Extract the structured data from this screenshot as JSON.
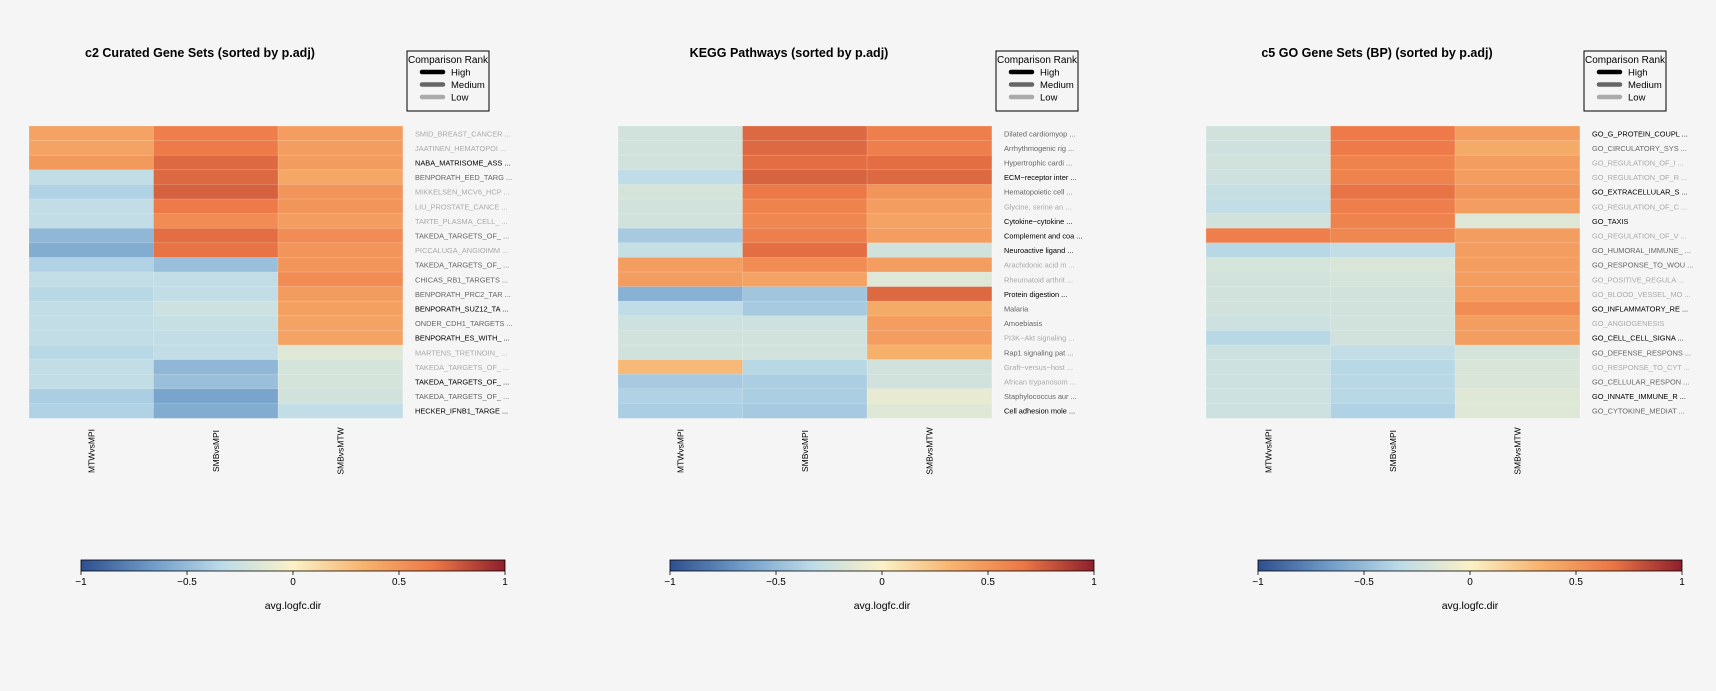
{
  "chart_data": [
    {
      "type": "heatmap",
      "title": "c2 Curated Gene Sets (sorted by p.adj)",
      "columns": [
        "MTWvsMPI",
        "SMBvsMPI",
        "SMBvsMTW"
      ],
      "rows": [
        {
          "label": "SMID_BREAST_CANCER ...",
          "rank": "low"
        },
        {
          "label": "JAATINEN_HEMATOPOI ...",
          "rank": "low"
        },
        {
          "label": "NABA_MATRISOME_ASS ...",
          "rank": "high"
        },
        {
          "label": "BENPORATH_EED_TARG ...",
          "rank": "medium"
        },
        {
          "label": "MIKKELSEN_MCV6_HCP ...",
          "rank": "low"
        },
        {
          "label": "LIU_PROSTATE_CANCE ...",
          "rank": "low"
        },
        {
          "label": "TARTE_PLASMA_CELL_ ...",
          "rank": "low"
        },
        {
          "label": "TAKEDA_TARGETS_OF_ ...",
          "rank": "medium"
        },
        {
          "label": "PICCALUGA_ANGIOIMM ...",
          "rank": "low"
        },
        {
          "label": "TAKEDA_TARGETS_OF_ ...",
          "rank": "medium"
        },
        {
          "label": "CHICAS_RB1_TARGETS ...",
          "rank": "medium"
        },
        {
          "label": "BENPORATH_PRC2_TAR ...",
          "rank": "medium"
        },
        {
          "label": "BENPORATH_SUZ12_TA ...",
          "rank": "high"
        },
        {
          "label": "ONDER_CDH1_TARGETS ...",
          "rank": "medium"
        },
        {
          "label": "BENPORATH_ES_WITH_ ...",
          "rank": "high"
        },
        {
          "label": "MARTENS_TRETINOIN_ ...",
          "rank": "low"
        },
        {
          "label": "TAKEDA_TARGETS_OF_ ...",
          "rank": "low"
        },
        {
          "label": "TAKEDA_TARGETS_OF_ ...",
          "rank": "high"
        },
        {
          "label": "TAKEDA_TARGETS_OF_ ...",
          "rank": "medium"
        },
        {
          "label": "HECKER_IFNB1_TARGE ...",
          "rank": "high"
        }
      ],
      "values": [
        [
          0.42,
          0.62,
          0.45
        ],
        [
          0.42,
          0.65,
          0.45
        ],
        [
          0.48,
          0.72,
          0.46
        ],
        [
          -0.3,
          0.72,
          0.4
        ],
        [
          -0.38,
          0.75,
          0.5
        ],
        [
          -0.3,
          0.65,
          0.5
        ],
        [
          -0.3,
          0.55,
          0.45
        ],
        [
          -0.52,
          0.7,
          0.55
        ],
        [
          -0.58,
          0.68,
          0.5
        ],
        [
          -0.38,
          -0.48,
          0.5
        ],
        [
          -0.3,
          -0.3,
          0.55
        ],
        [
          -0.35,
          -0.3,
          0.46
        ],
        [
          -0.3,
          -0.25,
          0.44
        ],
        [
          -0.3,
          -0.28,
          0.42
        ],
        [
          -0.3,
          -0.3,
          0.42
        ],
        [
          -0.35,
          -0.3,
          -0.15
        ],
        [
          -0.3,
          -0.52,
          -0.2
        ],
        [
          -0.3,
          -0.48,
          -0.2
        ],
        [
          -0.4,
          -0.62,
          -0.22
        ],
        [
          -0.38,
          -0.58,
          -0.3
        ]
      ],
      "legend": {
        "title": "Comparison Rank",
        "items": [
          "High",
          "Medium",
          "Low"
        ],
        "position": "top-right"
      },
      "colorbar": {
        "label": "avg.logfc.dir",
        "ticks": [
          "−1",
          "−0.5",
          "0",
          "0.5",
          "1"
        ],
        "range": [
          -1,
          1
        ]
      }
    },
    {
      "type": "heatmap",
      "title": "KEGG Pathways (sorted by p.adj)",
      "columns": [
        "MTWvsMPI",
        "SMBvsMPI",
        "SMBvsMTW"
      ],
      "rows": [
        {
          "label": "Dilated cardiomyop ...",
          "rank": "medium"
        },
        {
          "label": "Arrhythmogenic rig ...",
          "rank": "medium"
        },
        {
          "label": "Hypertrophic cardi ...",
          "rank": "medium"
        },
        {
          "label": "ECM−receptor inter ...",
          "rank": "high"
        },
        {
          "label": "Hematopoietic cell ...",
          "rank": "medium"
        },
        {
          "label": "Glycine, serine an ...",
          "rank": "low"
        },
        {
          "label": "Cytokine−cytokine  ...",
          "rank": "high"
        },
        {
          "label": "Complement and coa ...",
          "rank": "high"
        },
        {
          "label": "Neuroactive ligand ...",
          "rank": "high"
        },
        {
          "label": "Arachidonic acid m ...",
          "rank": "low"
        },
        {
          "label": "Rheumatoid arthrit ...",
          "rank": "low"
        },
        {
          "label": "Protein digestion  ...",
          "rank": "high"
        },
        {
          "label": "Malaria",
          "rank": "medium"
        },
        {
          "label": "Amoebiasis",
          "rank": "medium"
        },
        {
          "label": "PI3K−Akt signaling ...",
          "rank": "low"
        },
        {
          "label": "Rap1 signaling pat ...",
          "rank": "medium"
        },
        {
          "label": "Graft−versus−host  ...",
          "rank": "low"
        },
        {
          "label": "African trypanosom ...",
          "rank": "low"
        },
        {
          "label": "Staphylococcus aur ...",
          "rank": "medium"
        },
        {
          "label": "Cell adhesion mole ...",
          "rank": "high"
        }
      ],
      "values": [
        [
          -0.22,
          0.72,
          0.62
        ],
        [
          -0.22,
          0.72,
          0.62
        ],
        [
          -0.22,
          0.7,
          0.7
        ],
        [
          -0.32,
          0.74,
          0.72
        ],
        [
          -0.2,
          0.66,
          0.5
        ],
        [
          -0.22,
          0.6,
          0.45
        ],
        [
          -0.22,
          0.58,
          0.42
        ],
        [
          -0.42,
          0.62,
          0.45
        ],
        [
          -0.28,
          0.7,
          -0.22
        ],
        [
          0.45,
          0.55,
          0.45
        ],
        [
          0.45,
          0.42,
          -0.15
        ],
        [
          -0.55,
          -0.45,
          0.72
        ],
        [
          -0.32,
          -0.42,
          0.38
        ],
        [
          -0.25,
          -0.25,
          0.45
        ],
        [
          -0.22,
          -0.22,
          0.45
        ],
        [
          -0.22,
          -0.22,
          0.35
        ],
        [
          0.3,
          -0.35,
          -0.22
        ],
        [
          -0.42,
          -0.4,
          -0.22
        ],
        [
          -0.38,
          -0.4,
          -0.1
        ],
        [
          -0.4,
          -0.42,
          -0.15
        ]
      ],
      "legend": {
        "title": "Comparison Rank",
        "items": [
          "High",
          "Medium",
          "Low"
        ],
        "position": "top-right"
      },
      "colorbar": {
        "label": "avg.logfc.dir",
        "ticks": [
          "−1",
          "−0.5",
          "0",
          "0.5",
          "1"
        ],
        "range": [
          -1,
          1
        ]
      }
    },
    {
      "type": "heatmap",
      "title": "c5 GO Gene Sets (BP) (sorted by p.adj)",
      "columns": [
        "MTWvsMPI",
        "SMBvsMPI",
        "SMBvsMTW"
      ],
      "rows": [
        {
          "label": "GO_G_PROTEIN_COUPL ...",
          "rank": "high"
        },
        {
          "label": "GO_CIRCULATORY_SYS ...",
          "rank": "medium"
        },
        {
          "label": "GO_REGULATION_OF_I ...",
          "rank": "low"
        },
        {
          "label": "GO_REGULATION_OF_R ...",
          "rank": "low"
        },
        {
          "label": "GO_EXTRACELLULAR_S ...",
          "rank": "high"
        },
        {
          "label": "GO_REGULATION_OF_C ...",
          "rank": "low"
        },
        {
          "label": "GO_TAXIS",
          "rank": "high"
        },
        {
          "label": "GO_REGULATION_OF_V ...",
          "rank": "low"
        },
        {
          "label": "GO_HUMORAL_IMMUNE_ ...",
          "rank": "medium"
        },
        {
          "label": "GO_RESPONSE_TO_WOU ...",
          "rank": "medium"
        },
        {
          "label": "GO_POSITIVE_REGULA ...",
          "rank": "low"
        },
        {
          "label": "GO_BLOOD_VESSEL_MO ...",
          "rank": "low"
        },
        {
          "label": "GO_INFLAMMATORY_RE ...",
          "rank": "high"
        },
        {
          "label": "GO_ANGIOGENESIS",
          "rank": "low"
        },
        {
          "label": "GO_CELL_CELL_SIGNA ...",
          "rank": "high"
        },
        {
          "label": "GO_DEFENSE_RESPONS ...",
          "rank": "medium"
        },
        {
          "label": "GO_RESPONSE_TO_CYT ...",
          "rank": "low"
        },
        {
          "label": "GO_CELLULAR_RESPON ...",
          "rank": "medium"
        },
        {
          "label": "GO_INNATE_IMMUNE_R ...",
          "rank": "high"
        },
        {
          "label": "GO_CYTOKINE_MEDIAT ...",
          "rank": "medium"
        }
      ],
      "values": [
        [
          -0.22,
          0.65,
          0.45
        ],
        [
          -0.24,
          0.65,
          0.38
        ],
        [
          -0.22,
          0.6,
          0.45
        ],
        [
          -0.24,
          0.6,
          0.45
        ],
        [
          -0.28,
          0.68,
          0.5
        ],
        [
          -0.3,
          0.62,
          0.45
        ],
        [
          -0.22,
          0.6,
          -0.15
        ],
        [
          0.62,
          0.58,
          0.45
        ],
        [
          -0.35,
          -0.3,
          0.45
        ],
        [
          -0.2,
          -0.18,
          0.45
        ],
        [
          -0.22,
          -0.2,
          0.45
        ],
        [
          -0.22,
          -0.22,
          0.45
        ],
        [
          -0.22,
          -0.22,
          0.55
        ],
        [
          -0.25,
          -0.22,
          0.45
        ],
        [
          -0.35,
          -0.22,
          0.45
        ],
        [
          -0.25,
          -0.3,
          -0.2
        ],
        [
          -0.25,
          -0.35,
          -0.18
        ],
        [
          -0.25,
          -0.35,
          -0.18
        ],
        [
          -0.25,
          -0.35,
          -0.15
        ],
        [
          -0.25,
          -0.38,
          -0.15
        ]
      ],
      "legend": {
        "title": "Comparison Rank",
        "items": [
          "High",
          "Medium",
          "Low"
        ],
        "position": "top-right"
      },
      "colorbar": {
        "label": "avg.logfc.dir",
        "ticks": [
          "−1",
          "−0.5",
          "0",
          "0.5",
          "1"
        ],
        "range": [
          -1,
          1
        ]
      }
    }
  ],
  "colors": {
    "background": "#f5f5f5",
    "rank_high": "#000000",
    "rank_medium": "#666666",
    "rank_low": "#aaaaaa",
    "scale": [
      "#2f4f8f",
      "#6e9bc8",
      "#bcdbe8",
      "#fbf1c7",
      "#f7b36e",
      "#ec7746",
      "#8e1f2b"
    ]
  }
}
